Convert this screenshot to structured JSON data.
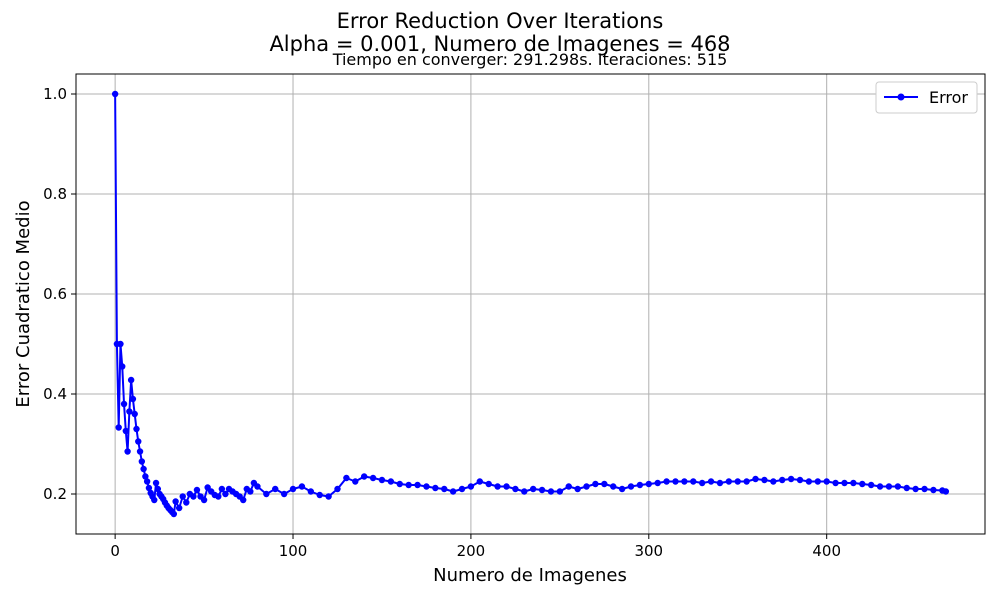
{
  "chart_data": {
    "type": "line",
    "title": "Error Reduction Over Iterations",
    "subtitle": "Alpha = 0.001, Numero de Imagenes = 468",
    "annotation": "Tiempo en converger: 291.298s.  Iteraciones: 515",
    "xlabel": "Numero de Imagenes",
    "ylabel": "Error Cuadratico Medio",
    "xlim": [
      -22,
      489
    ],
    "ylim": [
      0.12,
      1.04
    ],
    "xticks": [
      0,
      100,
      200,
      300,
      400
    ],
    "yticks": [
      0.2,
      0.4,
      0.6,
      0.8,
      1.0
    ],
    "xtick_labels": [
      "0",
      "100",
      "200",
      "300",
      "400"
    ],
    "ytick_labels": [
      "0.2",
      "0.4",
      "0.6",
      "0.8",
      "1.0"
    ],
    "grid": true,
    "legend": "top-right",
    "series": [
      {
        "name": "Error",
        "color": "#0000ff",
        "marker": "circle",
        "x": [
          0,
          1,
          2,
          3,
          4,
          5,
          6,
          7,
          8,
          9,
          10,
          11,
          12,
          13,
          14,
          15,
          16,
          17,
          18,
          19,
          20,
          21,
          22,
          23,
          24,
          25,
          26,
          27,
          28,
          29,
          30,
          31,
          32,
          33,
          34,
          36,
          38,
          40,
          42,
          44,
          46,
          48,
          50,
          52,
          54,
          56,
          58,
          60,
          62,
          64,
          66,
          68,
          70,
          72,
          74,
          76,
          78,
          80,
          85,
          90,
          95,
          100,
          105,
          110,
          115,
          120,
          125,
          130,
          135,
          140,
          145,
          150,
          155,
          160,
          165,
          170,
          175,
          180,
          185,
          190,
          195,
          200,
          205,
          210,
          215,
          220,
          225,
          230,
          235,
          240,
          245,
          250,
          255,
          260,
          265,
          270,
          275,
          280,
          285,
          290,
          295,
          300,
          305,
          310,
          315,
          320,
          325,
          330,
          335,
          340,
          345,
          350,
          355,
          360,
          365,
          370,
          375,
          380,
          385,
          390,
          395,
          400,
          405,
          410,
          415,
          420,
          425,
          430,
          435,
          440,
          445,
          450,
          455,
          460,
          465,
          467
        ],
        "y": [
          1.0,
          0.5,
          0.333,
          0.5,
          0.455,
          0.38,
          0.326,
          0.285,
          0.365,
          0.428,
          0.39,
          0.36,
          0.33,
          0.305,
          0.285,
          0.265,
          0.25,
          0.235,
          0.225,
          0.212,
          0.202,
          0.195,
          0.188,
          0.222,
          0.21,
          0.2,
          0.195,
          0.19,
          0.183,
          0.177,
          0.172,
          0.168,
          0.164,
          0.16,
          0.185,
          0.172,
          0.195,
          0.183,
          0.2,
          0.195,
          0.208,
          0.195,
          0.188,
          0.213,
          0.205,
          0.198,
          0.195,
          0.21,
          0.2,
          0.21,
          0.205,
          0.2,
          0.195,
          0.188,
          0.21,
          0.205,
          0.222,
          0.215,
          0.2,
          0.21,
          0.2,
          0.21,
          0.215,
          0.205,
          0.198,
          0.195,
          0.21,
          0.232,
          0.225,
          0.235,
          0.232,
          0.228,
          0.225,
          0.22,
          0.218,
          0.218,
          0.215,
          0.212,
          0.21,
          0.205,
          0.21,
          0.215,
          0.225,
          0.22,
          0.215,
          0.215,
          0.21,
          0.205,
          0.21,
          0.208,
          0.205,
          0.205,
          0.215,
          0.21,
          0.215,
          0.22,
          0.22,
          0.215,
          0.21,
          0.215,
          0.218,
          0.22,
          0.222,
          0.225,
          0.225,
          0.225,
          0.225,
          0.222,
          0.225,
          0.222,
          0.225,
          0.225,
          0.225,
          0.23,
          0.228,
          0.225,
          0.228,
          0.23,
          0.228,
          0.225,
          0.225,
          0.225,
          0.222,
          0.222,
          0.222,
          0.22,
          0.218,
          0.215,
          0.215,
          0.215,
          0.212,
          0.21,
          0.21,
          0.208,
          0.207,
          0.205
        ]
      }
    ]
  }
}
